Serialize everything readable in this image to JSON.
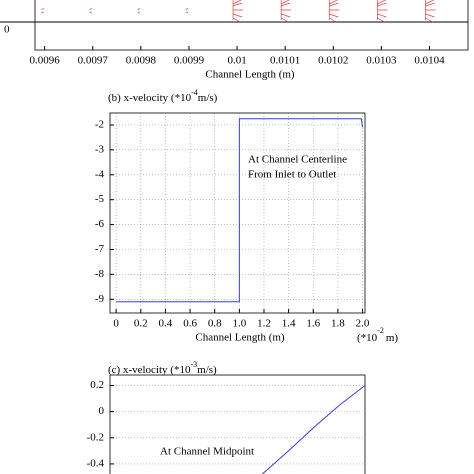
{
  "chart_data": [
    {
      "type": "quiver",
      "xlabel": "Channel Length (m)",
      "xlim": [
        0.00958,
        0.01048
      ],
      "xticks": [
        0.0096,
        0.0097,
        0.0098,
        0.0099,
        0.01,
        0.0101,
        0.0102,
        0.0103,
        0.0104
      ],
      "yticks": [
        0
      ],
      "color": "#e04040"
    },
    {
      "type": "line",
      "title": "(b) x-velocity (*10",
      "title_exponent": "-4",
      "title_unit": "m/s)",
      "xlabel": "Channel Length (m)",
      "x_unit": "(*10",
      "x_unit_exponent": "-2",
      "x_unit_tail": "m)",
      "annotations": [
        "At Channel Centerline",
        "From Inlet to Outlet"
      ],
      "xlim": [
        -0.05,
        2.02
      ],
      "ylim": [
        -9.55,
        -1.52
      ],
      "xticks": [
        0,
        0.2,
        0.4,
        0.6,
        0.8,
        {
          "value": 1,
          "label": "1.0"
        },
        1.2,
        1.4,
        1.6,
        1.8,
        {
          "value": 2,
          "label": "2.0"
        }
      ],
      "yticks": [
        -2,
        -3,
        -4,
        -5,
        -6,
        -7,
        -8,
        -9
      ],
      "grid": true,
      "series": [
        {
          "color": "#3b3bd6",
          "x": [
            0,
            1,
            1,
            1.99,
            2
          ],
          "values": [
            -9.1,
            -9.1,
            -1.75,
            -1.75,
            -2.1
          ]
        }
      ]
    },
    {
      "type": "line",
      "title": "(c) x-velocity (*10",
      "title_exponent": "-3",
      "title_unit": "m/s)",
      "annotations": [
        "At Channel Midpoint"
      ],
      "xlim": [
        0,
        1
      ],
      "ylim": [
        -0.5,
        0.28
      ],
      "yticks": [
        0.2,
        0,
        -0.2,
        -0.4
      ],
      "grid": true,
      "series": [
        {
          "color": "#3b3bd6",
          "x": [
            0.59,
            0.7,
            0.8,
            0.9,
            1
          ],
          "values": [
            -0.49,
            -0.3,
            -0.12,
            0.05,
            0.2
          ]
        }
      ]
    }
  ]
}
